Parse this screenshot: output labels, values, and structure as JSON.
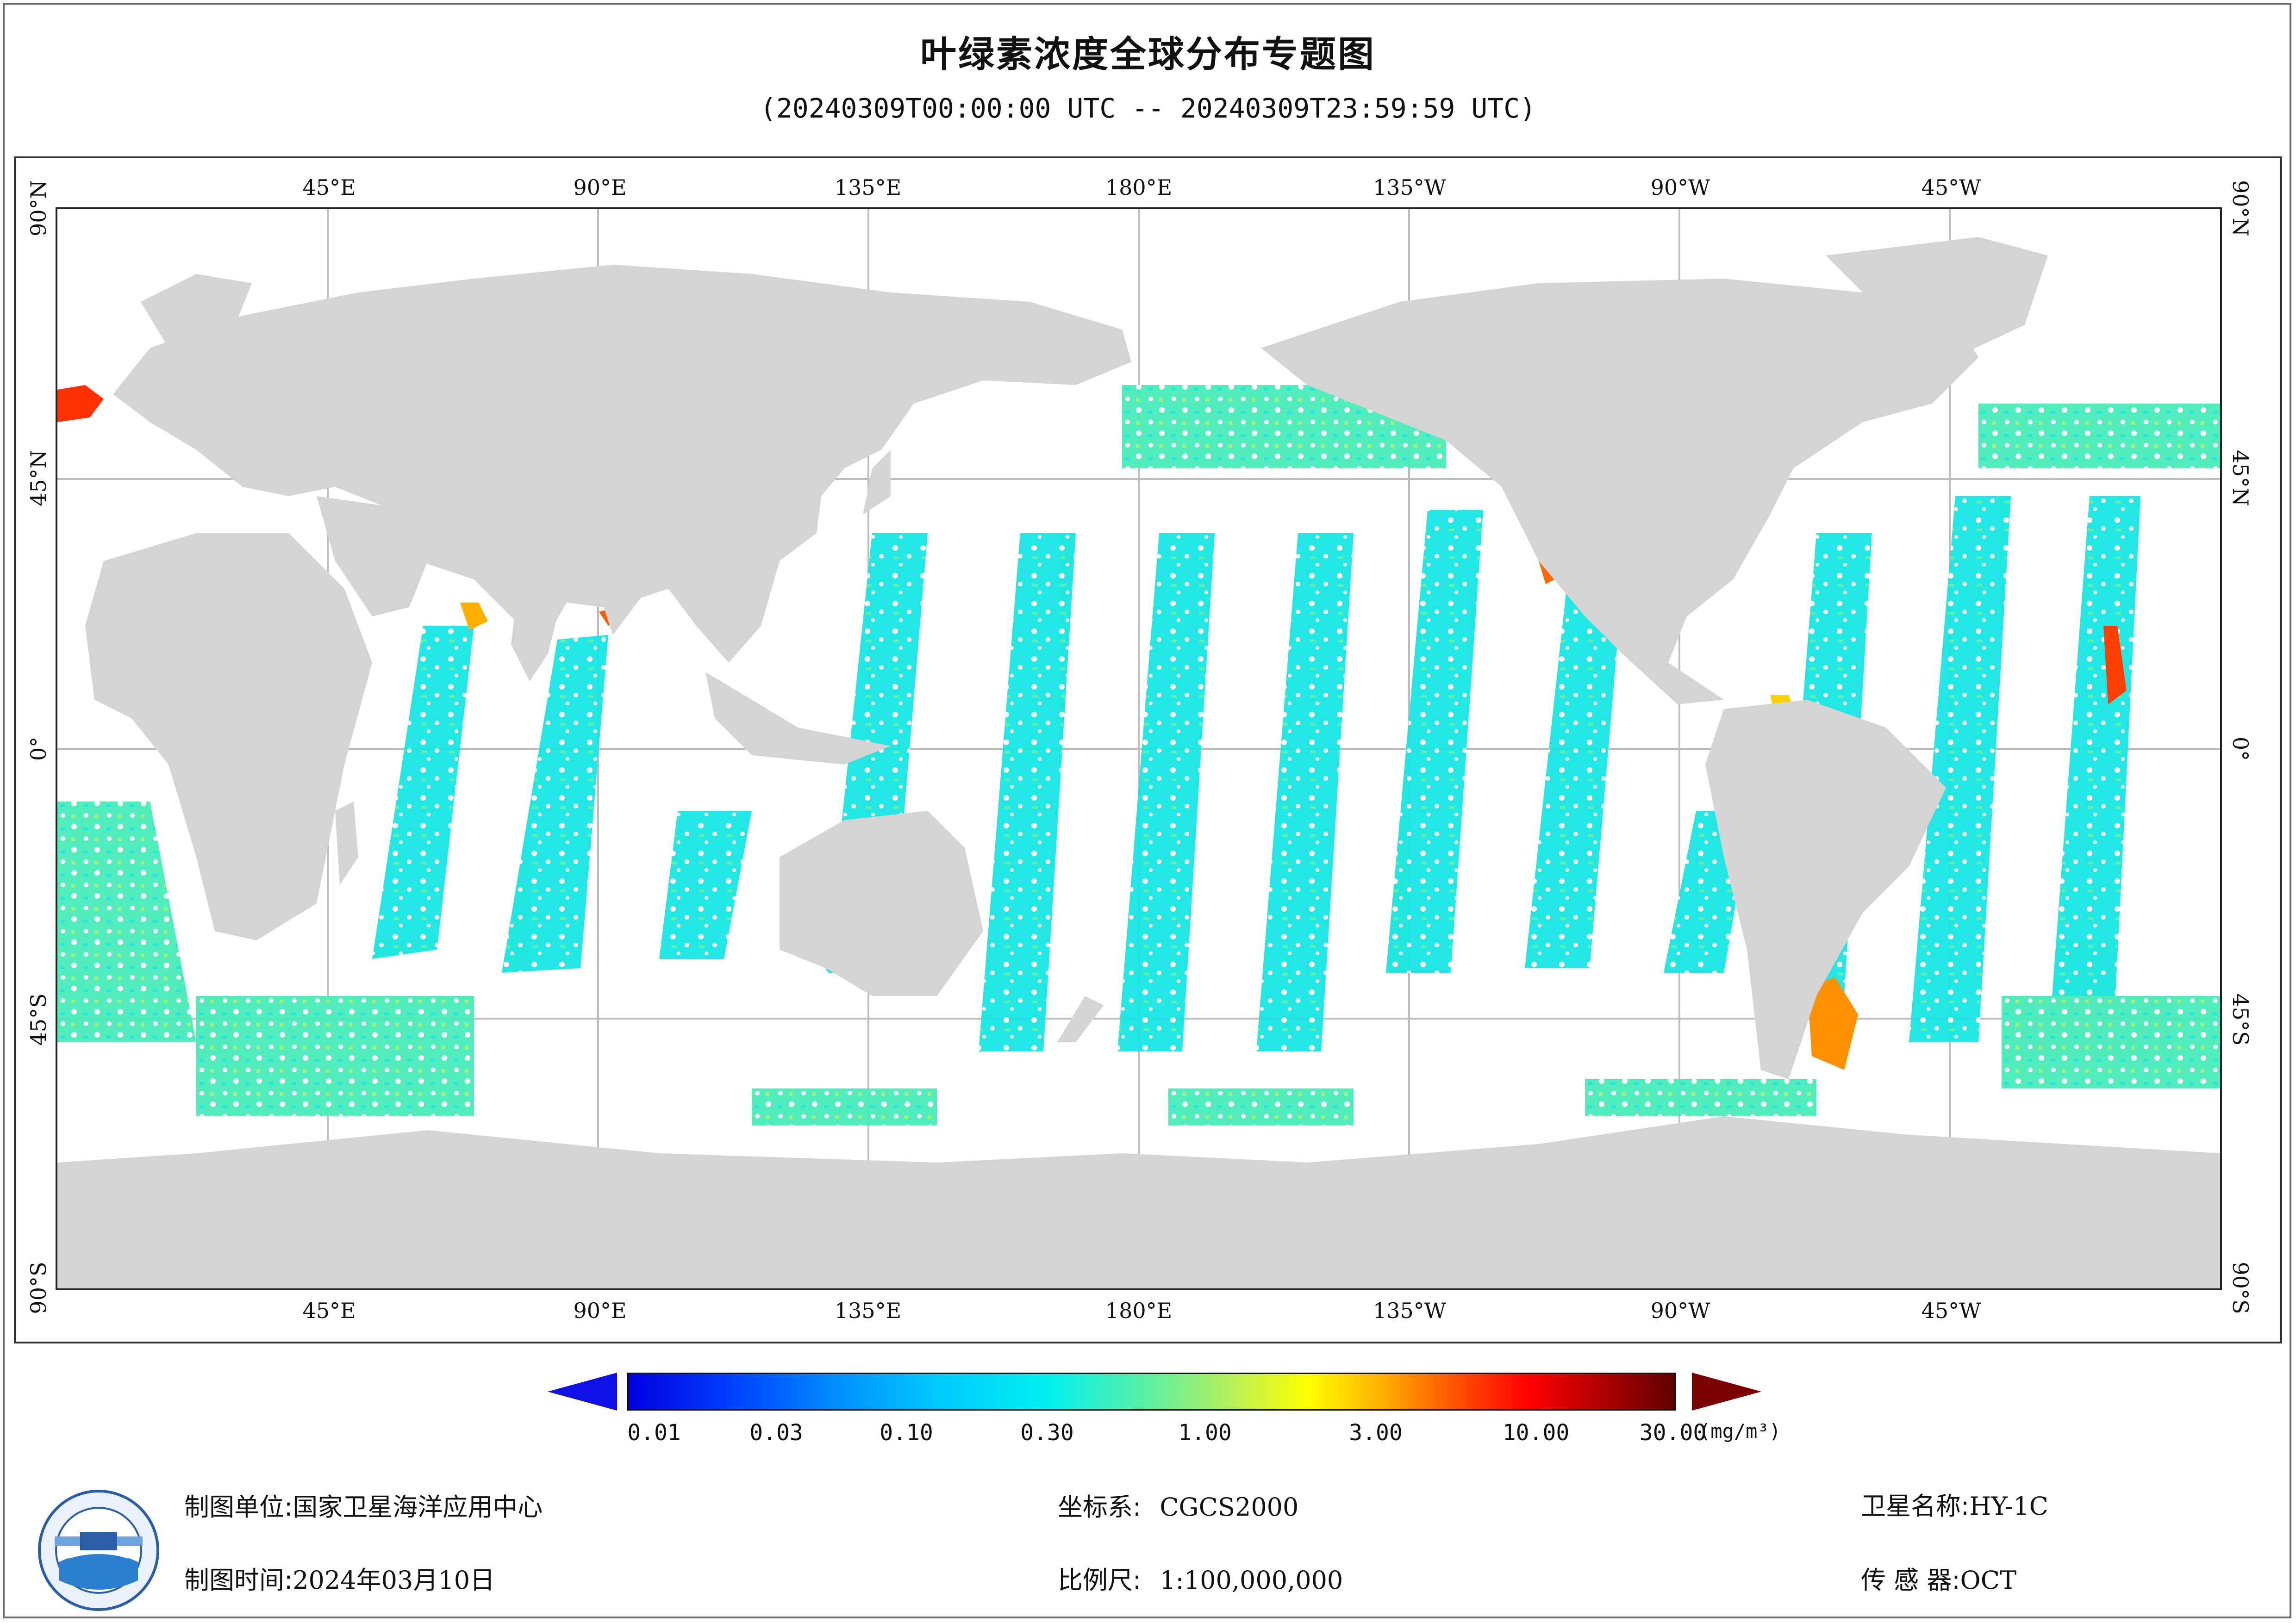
{
  "title": "叶绿素浓度全球分布专题图",
  "subtitle": "(20240309T00:00:00 UTC -- 20240309T23:59:59 UTC)",
  "map": {
    "longitude_labels": [
      "45°E",
      "90°E",
      "135°E",
      "180°E",
      "135°W",
      "90°W",
      "45°W"
    ],
    "latitude_labels": [
      "90°N",
      "45°N",
      "0°",
      "45°S",
      "90°S"
    ],
    "land_color": "#d4d4d4",
    "ocean_color": "#ffffff",
    "grid_color": "#bdbdbd"
  },
  "colorbar": {
    "ticks": [
      "0.01",
      "0.03",
      "0.10",
      "0.30",
      "1.00",
      "3.00",
      "10.00",
      "30.00"
    ],
    "unit": "(mg/m³)",
    "low_color": "#1010e8",
    "high_color": "#7a0000"
  },
  "footer": {
    "unit_label": "制图单位:",
    "unit_value": "国家卫星海洋应用中心",
    "time_label": "制图时间:",
    "time_value": "2024年03月10日",
    "crs_label": "坐标系:",
    "crs_value": "CGCS2000",
    "scale_label": "比例尺:",
    "scale_value": "1:100,000,000",
    "satellite_label": "卫星名称:",
    "satellite_value": "HY-1C",
    "sensor_label": "传 感 器:",
    "sensor_value": "OCT"
  },
  "logo": {
    "icon": "nsoas-logo-icon"
  }
}
